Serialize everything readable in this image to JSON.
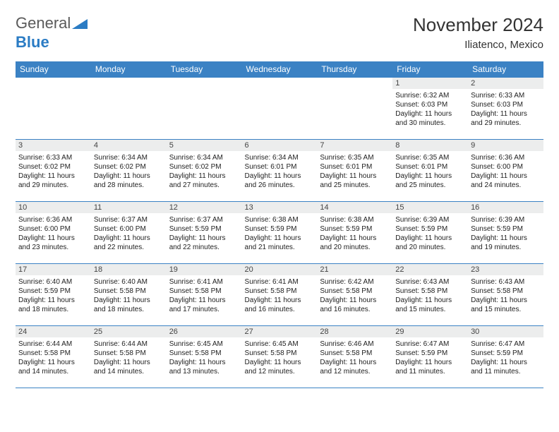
{
  "logo": {
    "word1": "General",
    "word2": "Blue"
  },
  "title": "November 2024",
  "location": "Iliatenco, Mexico",
  "colors": {
    "header_bg": "#3b82c4",
    "header_text": "#ffffff",
    "daynum_bg": "#eceded",
    "border": "#3b82c4",
    "logo_gray": "#5a5a5a",
    "logo_blue": "#2b7cc4"
  },
  "typography": {
    "title_fontsize": 26,
    "location_fontsize": 15,
    "dayheader_fontsize": 12,
    "daynum_fontsize": 11,
    "body_fontsize": 10
  },
  "day_headers": [
    "Sunday",
    "Monday",
    "Tuesday",
    "Wednesday",
    "Thursday",
    "Friday",
    "Saturday"
  ],
  "weeks": [
    [
      null,
      null,
      null,
      null,
      null,
      {
        "n": "1",
        "sunrise": "6:32 AM",
        "sunset": "6:03 PM",
        "daylight": "11 hours and 30 minutes."
      },
      {
        "n": "2",
        "sunrise": "6:33 AM",
        "sunset": "6:03 PM",
        "daylight": "11 hours and 29 minutes."
      }
    ],
    [
      {
        "n": "3",
        "sunrise": "6:33 AM",
        "sunset": "6:02 PM",
        "daylight": "11 hours and 29 minutes."
      },
      {
        "n": "4",
        "sunrise": "6:34 AM",
        "sunset": "6:02 PM",
        "daylight": "11 hours and 28 minutes."
      },
      {
        "n": "5",
        "sunrise": "6:34 AM",
        "sunset": "6:02 PM",
        "daylight": "11 hours and 27 minutes."
      },
      {
        "n": "6",
        "sunrise": "6:34 AM",
        "sunset": "6:01 PM",
        "daylight": "11 hours and 26 minutes."
      },
      {
        "n": "7",
        "sunrise": "6:35 AM",
        "sunset": "6:01 PM",
        "daylight": "11 hours and 25 minutes."
      },
      {
        "n": "8",
        "sunrise": "6:35 AM",
        "sunset": "6:01 PM",
        "daylight": "11 hours and 25 minutes."
      },
      {
        "n": "9",
        "sunrise": "6:36 AM",
        "sunset": "6:00 PM",
        "daylight": "11 hours and 24 minutes."
      }
    ],
    [
      {
        "n": "10",
        "sunrise": "6:36 AM",
        "sunset": "6:00 PM",
        "daylight": "11 hours and 23 minutes."
      },
      {
        "n": "11",
        "sunrise": "6:37 AM",
        "sunset": "6:00 PM",
        "daylight": "11 hours and 22 minutes."
      },
      {
        "n": "12",
        "sunrise": "6:37 AM",
        "sunset": "5:59 PM",
        "daylight": "11 hours and 22 minutes."
      },
      {
        "n": "13",
        "sunrise": "6:38 AM",
        "sunset": "5:59 PM",
        "daylight": "11 hours and 21 minutes."
      },
      {
        "n": "14",
        "sunrise": "6:38 AM",
        "sunset": "5:59 PM",
        "daylight": "11 hours and 20 minutes."
      },
      {
        "n": "15",
        "sunrise": "6:39 AM",
        "sunset": "5:59 PM",
        "daylight": "11 hours and 20 minutes."
      },
      {
        "n": "16",
        "sunrise": "6:39 AM",
        "sunset": "5:59 PM",
        "daylight": "11 hours and 19 minutes."
      }
    ],
    [
      {
        "n": "17",
        "sunrise": "6:40 AM",
        "sunset": "5:59 PM",
        "daylight": "11 hours and 18 minutes."
      },
      {
        "n": "18",
        "sunrise": "6:40 AM",
        "sunset": "5:58 PM",
        "daylight": "11 hours and 18 minutes."
      },
      {
        "n": "19",
        "sunrise": "6:41 AM",
        "sunset": "5:58 PM",
        "daylight": "11 hours and 17 minutes."
      },
      {
        "n": "20",
        "sunrise": "6:41 AM",
        "sunset": "5:58 PM",
        "daylight": "11 hours and 16 minutes."
      },
      {
        "n": "21",
        "sunrise": "6:42 AM",
        "sunset": "5:58 PM",
        "daylight": "11 hours and 16 minutes."
      },
      {
        "n": "22",
        "sunrise": "6:43 AM",
        "sunset": "5:58 PM",
        "daylight": "11 hours and 15 minutes."
      },
      {
        "n": "23",
        "sunrise": "6:43 AM",
        "sunset": "5:58 PM",
        "daylight": "11 hours and 15 minutes."
      }
    ],
    [
      {
        "n": "24",
        "sunrise": "6:44 AM",
        "sunset": "5:58 PM",
        "daylight": "11 hours and 14 minutes."
      },
      {
        "n": "25",
        "sunrise": "6:44 AM",
        "sunset": "5:58 PM",
        "daylight": "11 hours and 14 minutes."
      },
      {
        "n": "26",
        "sunrise": "6:45 AM",
        "sunset": "5:58 PM",
        "daylight": "11 hours and 13 minutes."
      },
      {
        "n": "27",
        "sunrise": "6:45 AM",
        "sunset": "5:58 PM",
        "daylight": "11 hours and 12 minutes."
      },
      {
        "n": "28",
        "sunrise": "6:46 AM",
        "sunset": "5:58 PM",
        "daylight": "11 hours and 12 minutes."
      },
      {
        "n": "29",
        "sunrise": "6:47 AM",
        "sunset": "5:59 PM",
        "daylight": "11 hours and 11 minutes."
      },
      {
        "n": "30",
        "sunrise": "6:47 AM",
        "sunset": "5:59 PM",
        "daylight": "11 hours and 11 minutes."
      }
    ]
  ],
  "labels": {
    "sunrise": "Sunrise:",
    "sunset": "Sunset:",
    "daylight": "Daylight:"
  }
}
